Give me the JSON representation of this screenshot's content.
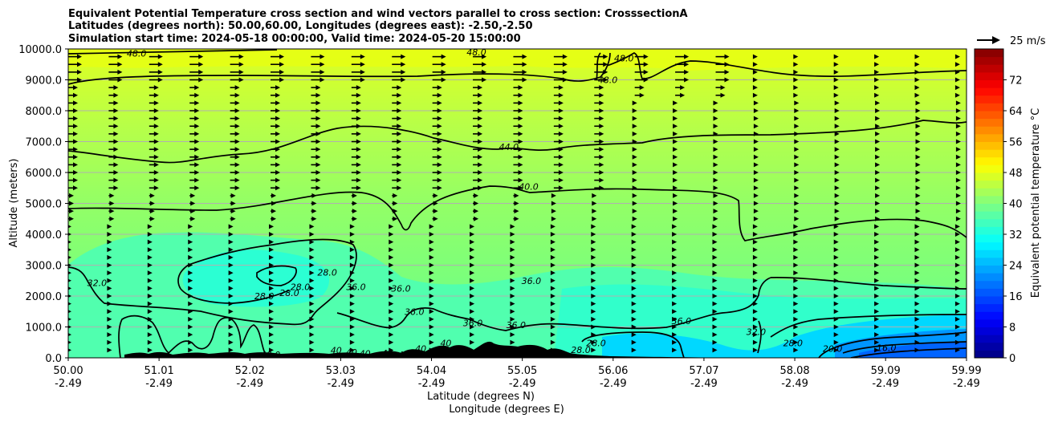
{
  "chart_data": {
    "type": "contour",
    "title_lines": [
      "Equivalent Potential Temperature cross section and wind vectors parallel to cross section: CrosssectionA",
      "Latitudes (degrees north): 50.00,60.00, Longitudes (degrees east): -2.50,-2.50",
      "Simulation start time: 2024-05-18 00:00:00, Valid time: 2024-05-20 15:00:00"
    ],
    "ylabel": "Altitude (meters)",
    "xlabel_1": "Latitude (degrees N)",
    "xlabel_2": "Longitude (degrees E)",
    "ylim": [
      0,
      10000
    ],
    "xlim": [
      50.0,
      59.99
    ],
    "y_ticks": [
      "0.0",
      "1000.0",
      "2000.0",
      "3000.0",
      "4000.0",
      "5000.0",
      "6000.0",
      "7000.0",
      "8000.0",
      "9000.0",
      "10000.0"
    ],
    "x_ticks": [
      {
        "lat": "50.00",
        "lon": "-2.49"
      },
      {
        "lat": "51.01",
        "lon": "-2.49"
      },
      {
        "lat": "52.02",
        "lon": "-2.49"
      },
      {
        "lat": "53.03",
        "lon": "-2.49"
      },
      {
        "lat": "54.04",
        "lon": "-2.49"
      },
      {
        "lat": "55.05",
        "lon": "-2.49"
      },
      {
        "lat": "56.06",
        "lon": "-2.49"
      },
      {
        "lat": "57.07",
        "lon": "-2.49"
      },
      {
        "lat": "58.08",
        "lon": "-2.49"
      },
      {
        "lat": "59.09",
        "lon": "-2.49"
      },
      {
        "lat": "59.99",
        "lon": "-2.49"
      }
    ],
    "colorbar": {
      "label": "Equivalent potential temperature $^\\circ$C",
      "label_text": "Equivalent potential temperature °C",
      "min": 0,
      "max": 80,
      "step": 2,
      "ticks": [
        "0",
        "8",
        "16",
        "24",
        "32",
        "40",
        "48",
        "56",
        "64",
        "72"
      ]
    },
    "quiver_key": {
      "label": "25 m/s",
      "value": 25
    },
    "contour_labels": [
      {
        "text": "48.0",
        "x": 50.76,
        "y": 9860
      },
      {
        "text": "48.0",
        "x": 54.54,
        "y": 9900
      },
      {
        "text": "48.0",
        "x": 56.0,
        "y": 9000
      },
      {
        "text": "48.0",
        "x": 56.18,
        "y": 9700
      },
      {
        "text": "44.0",
        "x": 54.9,
        "y": 6830
      },
      {
        "text": "40.0",
        "x": 55.12,
        "y": 5540
      },
      {
        "text": "32.0",
        "x": 50.32,
        "y": 2430
      },
      {
        "text": "28.0",
        "x": 52.88,
        "y": 2770
      },
      {
        "text": "28.0",
        "x": 52.58,
        "y": 2300
      },
      {
        "text": "28.0",
        "x": 52.46,
        "y": 2100
      },
      {
        "text": "28.0",
        "x": 52.18,
        "y": 2000
      },
      {
        "text": "36.0",
        "x": 53.2,
        "y": 2300
      },
      {
        "text": "36.0",
        "x": 53.7,
        "y": 2250
      },
      {
        "text": "36.0",
        "x": 55.15,
        "y": 2500
      },
      {
        "text": "36.0",
        "x": 54.98,
        "y": 1070
      },
      {
        "text": "36.0",
        "x": 56.82,
        "y": 1200
      },
      {
        "text": "36.0",
        "x": 54.5,
        "y": 1130
      },
      {
        "text": "36.0",
        "x": 53.85,
        "y": 1500
      },
      {
        "text": "32.0",
        "x": 57.65,
        "y": 850
      },
      {
        "text": "28.0",
        "x": 58.06,
        "y": 480
      },
      {
        "text": "28.0",
        "x": 55.87,
        "y": 480
      },
      {
        "text": "28.0",
        "x": 55.7,
        "y": 260
      },
      {
        "text": "20.0",
        "x": 58.5,
        "y": 300
      },
      {
        "text": "16.0",
        "x": 59.1,
        "y": 320
      },
      {
        "text": "40.0",
        "x": 52.25,
        "y": 100
      },
      {
        "text": "40",
        "x": 52.98,
        "y": 250
      },
      {
        "text": "40",
        "x": 53.15,
        "y": 180
      },
      {
        "text": "40",
        "x": 53.3,
        "y": 140
      },
      {
        "text": "40",
        "x": 53.55,
        "y": 160
      },
      {
        "text": "40",
        "x": 53.73,
        "y": 100
      },
      {
        "text": "40",
        "x": 53.92,
        "y": 300
      },
      {
        "text": "40",
        "x": 54.2,
        "y": 480
      }
    ],
    "contour_levels": [
      16,
      20,
      28,
      32,
      36,
      40,
      44,
      48
    ],
    "quiver_rows_m": [
      250,
      500,
      750,
      1000,
      1250,
      1500,
      1750,
      2000,
      2250,
      2500,
      2750,
      3000,
      3250,
      3500,
      3750,
      4000,
      4250,
      4500,
      4750,
      5000,
      5250,
      5500,
      5750,
      6000,
      6250,
      6500,
      6750,
      7000,
      7250,
      7500,
      7750,
      8000,
      8250,
      8500,
      8750,
      9000,
      9250,
      9500,
      9750
    ],
    "quiver_cols_deg": [
      50.0,
      50.45,
      50.9,
      51.35,
      51.8,
      52.25,
      52.7,
      53.15,
      53.6,
      54.05,
      54.5,
      54.95,
      55.4,
      55.85,
      56.3,
      56.75,
      57.2,
      57.65,
      58.1,
      58.55,
      59.0,
      59.45,
      59.9
    ]
  }
}
